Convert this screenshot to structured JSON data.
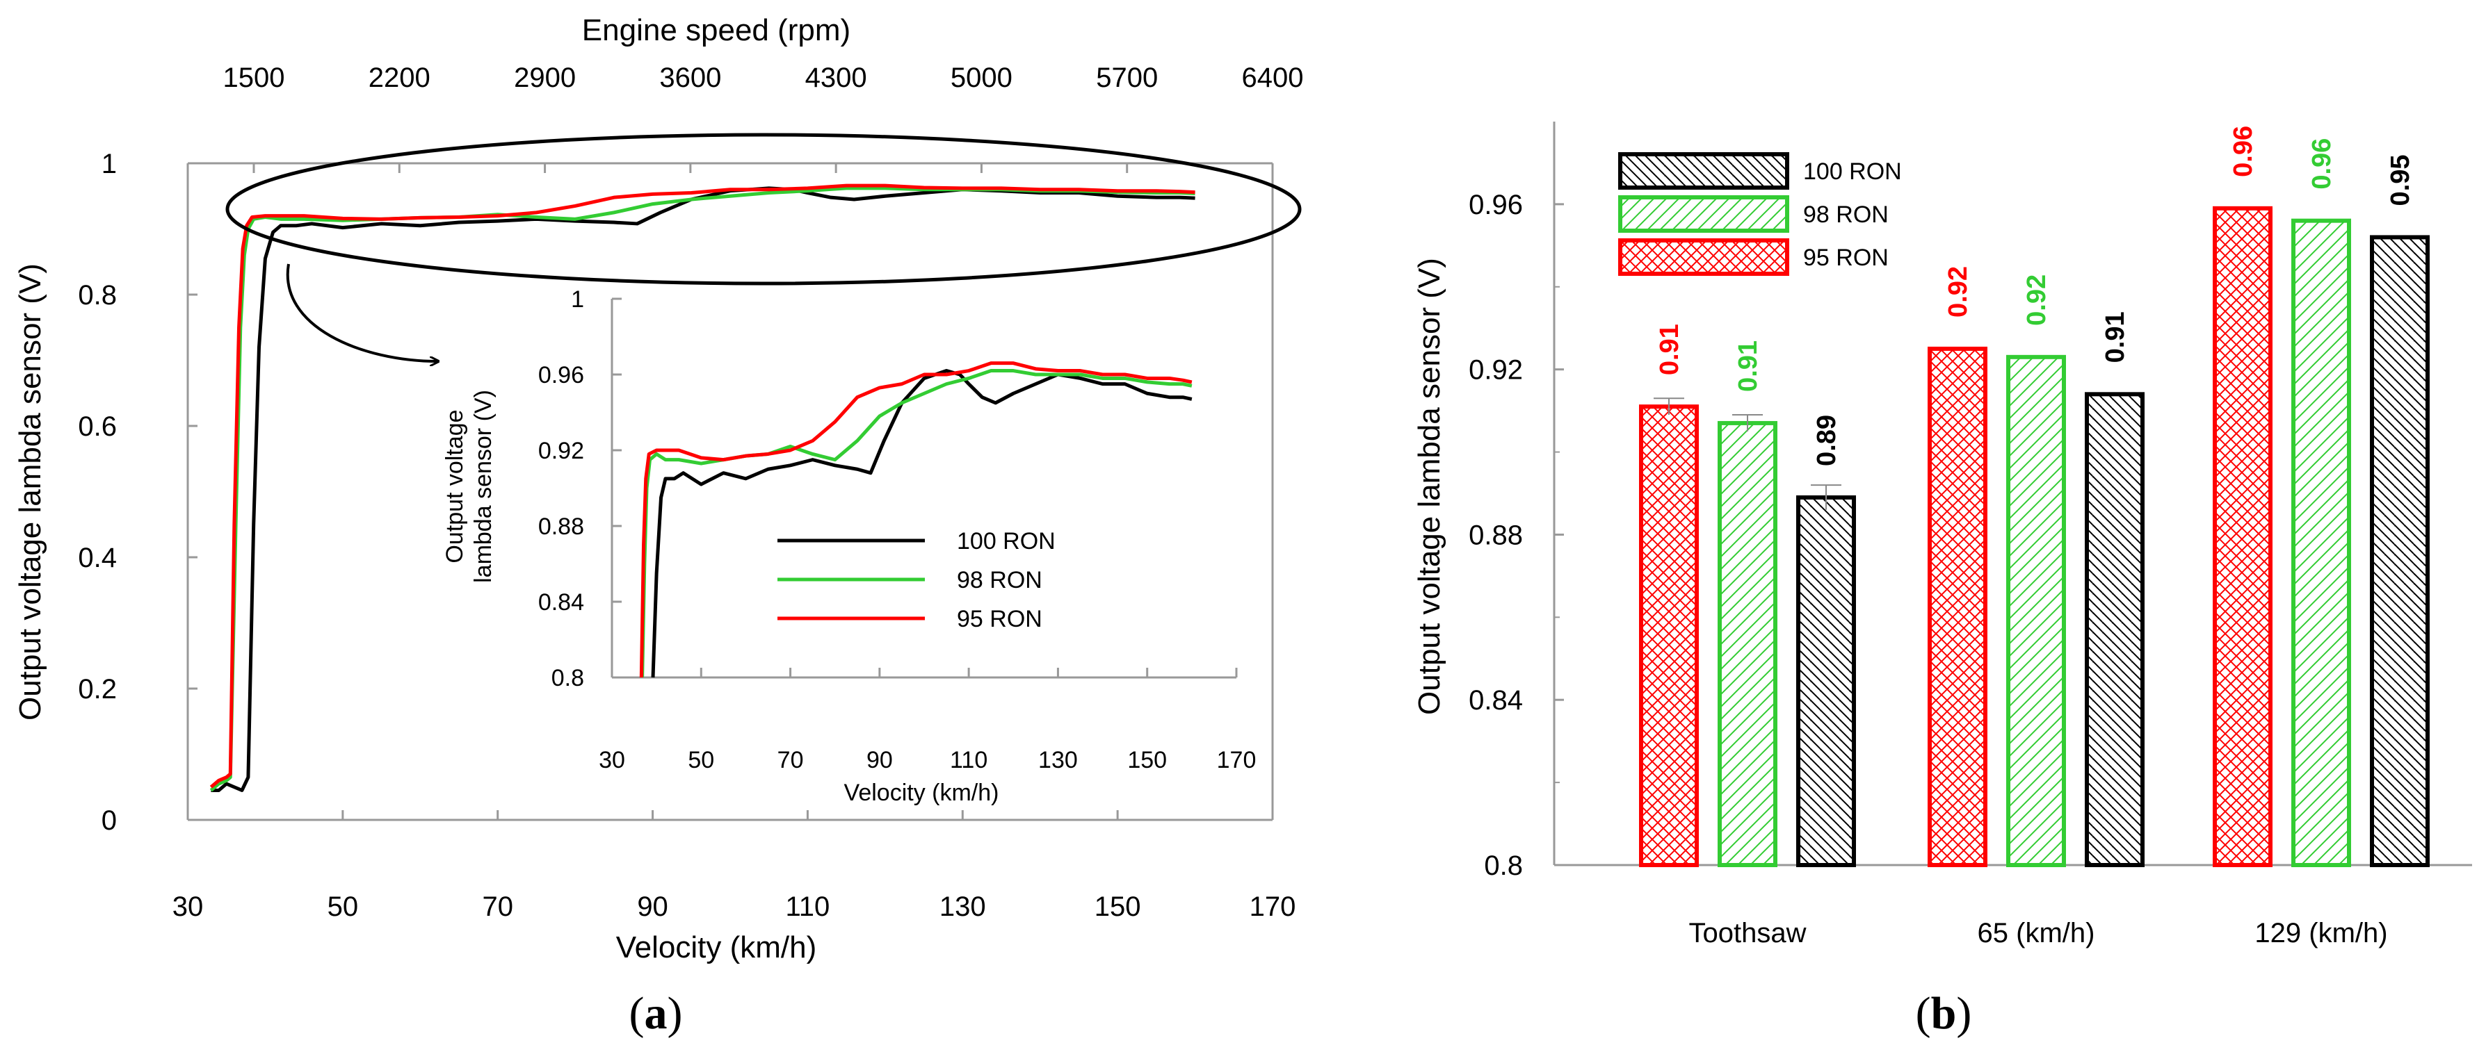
{
  "chart_data": [
    {
      "id": "a",
      "type": "line",
      "panel_label": "a",
      "xlabel": "Velocity (km/h)",
      "ylabel": "Output voltage lambda sensor (V)",
      "secondary_xlabel": "Engine speed (rpm)",
      "xlim": [
        30,
        170
      ],
      "ylim": [
        0,
        1
      ],
      "xticks": [
        "30",
        "50",
        "70",
        "90",
        "110",
        "130",
        "150",
        "170"
      ],
      "yticks": [
        "0",
        "0.2",
        "0.4",
        "0.6",
        "0.8",
        "1"
      ],
      "secondary_xticks": [
        "1500",
        "2200",
        "2900",
        "3600",
        "4300",
        "5000",
        "5700",
        "6400"
      ],
      "series": [
        {
          "name": "100 RON",
          "color": "#000000",
          "x": [
            33,
            34,
            35,
            36,
            37,
            37.8,
            38.5,
            39.2,
            40,
            41,
            42,
            44,
            46,
            50,
            55,
            60,
            65,
            70,
            75,
            80,
            85,
            88,
            91,
            95,
            100,
            105,
            108,
            110,
            113,
            116,
            120,
            125,
            130,
            135,
            140,
            145,
            150,
            155,
            158,
            160
          ],
          "y": [
            0.045,
            0.045,
            0.055,
            0.05,
            0.045,
            0.065,
            0.45,
            0.72,
            0.855,
            0.895,
            0.905,
            0.905,
            0.908,
            0.902,
            0.908,
            0.905,
            0.91,
            0.912,
            0.915,
            0.912,
            0.91,
            0.908,
            0.925,
            0.945,
            0.958,
            0.962,
            0.96,
            0.955,
            0.948,
            0.945,
            0.95,
            0.955,
            0.96,
            0.958,
            0.955,
            0.955,
            0.95,
            0.948,
            0.948,
            0.947
          ]
        },
        {
          "name": "98 RON",
          "color": "#33cc33",
          "x": [
            33,
            34,
            35,
            35.5,
            36.2,
            36.8,
            37.3,
            37.8,
            38.5,
            40,
            42,
            45,
            50,
            55,
            60,
            65,
            70,
            75,
            80,
            85,
            90,
            95,
            100,
            105,
            110,
            115,
            120,
            125,
            130,
            135,
            140,
            145,
            150,
            155,
            158,
            160
          ],
          "y": [
            0.045,
            0.055,
            0.06,
            0.065,
            0.45,
            0.75,
            0.86,
            0.9,
            0.915,
            0.918,
            0.915,
            0.915,
            0.913,
            0.915,
            0.917,
            0.918,
            0.922,
            0.918,
            0.915,
            0.925,
            0.938,
            0.945,
            0.95,
            0.955,
            0.958,
            0.962,
            0.962,
            0.96,
            0.96,
            0.96,
            0.958,
            0.958,
            0.956,
            0.955,
            0.955,
            0.954
          ]
        },
        {
          "name": "95 RON",
          "color": "#ff0000",
          "x": [
            33,
            34,
            35,
            35.5,
            36,
            36.6,
            37.1,
            37.6,
            38.3,
            40,
            42,
            45,
            50,
            55,
            60,
            65,
            70,
            75,
            80,
            85,
            90,
            95,
            100,
            105,
            110,
            115,
            120,
            125,
            130,
            135,
            140,
            145,
            150,
            155,
            158,
            160
          ],
          "y": [
            0.05,
            0.06,
            0.065,
            0.07,
            0.45,
            0.75,
            0.87,
            0.905,
            0.918,
            0.92,
            0.92,
            0.92,
            0.916,
            0.915,
            0.917,
            0.918,
            0.92,
            0.925,
            0.935,
            0.948,
            0.953,
            0.955,
            0.96,
            0.96,
            0.962,
            0.966,
            0.966,
            0.963,
            0.962,
            0.962,
            0.96,
            0.96,
            0.958,
            0.958,
            0.957,
            0.956
          ]
        }
      ]
    },
    {
      "id": "a-inset",
      "type": "line",
      "xlabel": "Velocity (km/h)",
      "ylabel_line1": "Output voltage",
      "ylabel_line2": "lambda sensor (V)",
      "xlim": [
        30,
        170
      ],
      "ylim": [
        0.8,
        1
      ],
      "xticks": [
        "30",
        "50",
        "70",
        "90",
        "110",
        "130",
        "150",
        "170"
      ],
      "yticks": [
        "0.8",
        "0.84",
        "0.88",
        "0.92",
        "0.96",
        "1"
      ],
      "legend": [
        "100 RON",
        "98 RON",
        "95 RON"
      ]
    },
    {
      "id": "b",
      "type": "bar",
      "panel_label": "b",
      "ylabel": "Output voltage lambda sensor (V)",
      "categories": [
        "Toothsaw",
        "65 (km/h)",
        "129 (km/h)"
      ],
      "ylim": [
        0.8,
        0.98
      ],
      "yticks": [
        "0.8",
        "0.84",
        "0.88",
        "0.92",
        "0.96"
      ],
      "series": [
        {
          "name": "95 RON",
          "color": "#ff0000",
          "pattern": "crosshatch",
          "values": [
            0.911,
            0.925,
            0.959
          ],
          "labels": [
            "0.91",
            "0.92",
            "0.96"
          ],
          "errors": [
            0.002,
            0,
            0
          ]
        },
        {
          "name": "98 RON",
          "color": "#33cc33",
          "pattern": "diagonal",
          "values": [
            0.907,
            0.923,
            0.956
          ],
          "labels": [
            "0.91",
            "0.92",
            "0.96"
          ],
          "errors": [
            0.002,
            0,
            0
          ]
        },
        {
          "name": "100 RON",
          "color": "#000000",
          "pattern": "diagonal-dense",
          "values": [
            0.889,
            0.914,
            0.952
          ],
          "labels": [
            "0.89",
            "0.91",
            "0.95"
          ],
          "errors": [
            0.003,
            0,
            0
          ]
        }
      ],
      "legend": [
        "100 RON",
        "98 RON",
        "95 RON"
      ]
    }
  ]
}
